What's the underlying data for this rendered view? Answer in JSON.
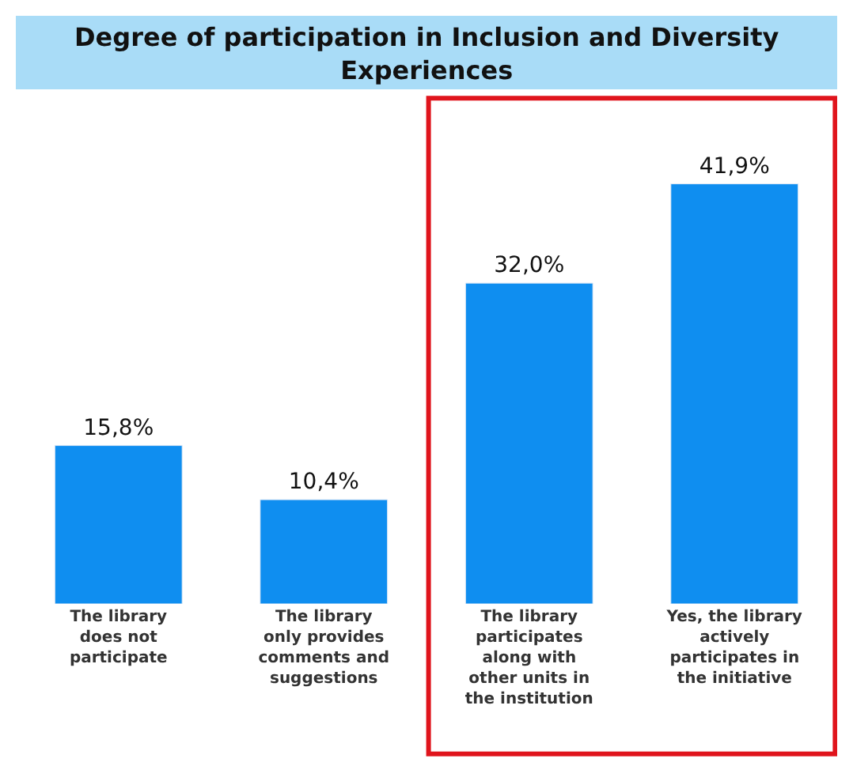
{
  "chart_data": {
    "type": "bar",
    "title": "Degree of participation in Inclusion and Diversity\nExperiences",
    "categories": [
      "The library\ndoes not\nparticipate",
      "The library\nonly provides\ncomments and\nsuggestions",
      "The library\nparticipates\nalong with\nother units in\nthe institution",
      "Yes, the library\nactively\nparticipates in\nthe initiative"
    ],
    "values": [
      15.8,
      10.4,
      32.0,
      41.9
    ],
    "value_labels": [
      "15,8%",
      "10,4%",
      "32,0%",
      "41,9%"
    ],
    "color": "#0f8ef0",
    "legend": false
  }
}
